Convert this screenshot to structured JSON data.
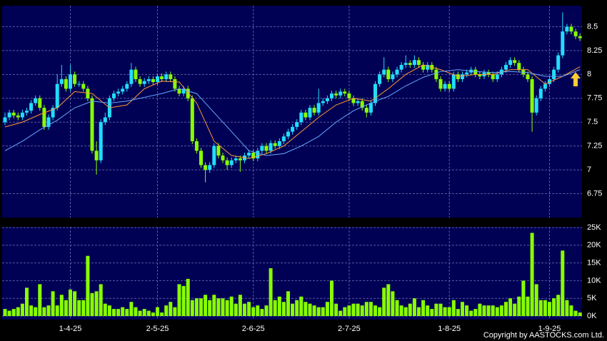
{
  "chart_data": [
    {
      "type": "candlestick",
      "categories": [
        null,
        null,
        null,
        null,
        null,
        null,
        null,
        null,
        null,
        null,
        null,
        null,
        null,
        null,
        null,
        "1-4-25",
        null,
        null,
        null,
        null,
        null,
        null,
        null,
        null,
        null,
        null,
        null,
        null,
        null,
        null,
        null,
        null,
        null,
        null,
        null,
        "2-5-25",
        null,
        null,
        null,
        null,
        null,
        null,
        null,
        null,
        null,
        null,
        null,
        null,
        null,
        null,
        null,
        null,
        null,
        null,
        null,
        null,
        null,
        "2-6-25",
        null,
        null,
        null,
        null,
        null,
        null,
        null,
        null,
        null,
        null,
        null,
        null,
        null,
        null,
        null,
        null,
        null,
        null,
        null,
        null,
        null,
        "2-7-25",
        null,
        null,
        null,
        null,
        null,
        null,
        null,
        null,
        null,
        null,
        null,
        null,
        null,
        null,
        null,
        null,
        null,
        null,
        null,
        null,
        null,
        null,
        "1-8-25",
        null,
        null,
        null,
        null,
        null,
        null,
        null,
        null,
        null,
        null,
        null,
        null,
        null,
        null,
        null,
        null,
        null,
        null,
        null,
        null,
        null,
        null,
        "1-9-25",
        null,
        null,
        null,
        null,
        null,
        null,
        null
      ],
      "open": [
        7.5,
        7.55,
        7.6,
        7.57,
        7.55,
        7.6,
        7.62,
        7.7,
        7.75,
        7.65,
        7.45,
        7.55,
        7.65,
        7.9,
        7.95,
        7.85,
        8.0,
        7.9,
        7.9,
        7.85,
        7.75,
        7.2,
        7.1,
        7.5,
        7.55,
        7.75,
        7.8,
        7.82,
        7.85,
        7.9,
        8.05,
        7.95,
        7.9,
        7.93,
        7.95,
        7.92,
        7.98,
        7.95,
        8.0,
        7.95,
        7.85,
        7.8,
        7.85,
        7.75,
        7.3,
        7.2,
        7.05,
        7.0,
        7.05,
        7.25,
        7.15,
        7.1,
        7.05,
        7.1,
        7.12,
        7.1,
        7.15,
        7.18,
        7.12,
        7.2,
        7.25,
        7.2,
        7.28,
        7.25,
        7.3,
        7.35,
        7.4,
        7.45,
        7.5,
        7.6,
        7.55,
        7.65,
        7.6,
        7.7,
        7.72,
        7.75,
        7.8,
        7.78,
        7.82,
        7.8,
        7.75,
        7.7,
        7.72,
        7.65,
        7.6,
        7.7,
        7.9,
        8.0,
        8.05,
        7.95,
        8.0,
        8.05,
        8.1,
        8.12,
        8.1,
        8.15,
        8.1,
        8.05,
        8.1,
        8.05,
        7.95,
        7.85,
        7.9,
        7.85,
        8.0,
        7.95,
        8.0,
        8.02,
        8.05,
        8.0,
        7.98,
        8.02,
        8.0,
        7.95,
        8.0,
        8.05,
        8.1,
        8.15,
        8.12,
        8.05,
        8.0,
        7.95,
        7.6,
        7.75,
        7.85,
        7.9,
        7.95,
        8.05,
        8.2,
        8.45,
        8.5,
        8.45,
        8.4
      ],
      "high": [
        7.6,
        7.63,
        7.63,
        7.6,
        7.63,
        7.65,
        7.73,
        7.78,
        7.78,
        7.68,
        7.58,
        7.68,
        8.0,
        8.1,
        7.98,
        8.1,
        8.03,
        7.93,
        7.93,
        7.88,
        7.78,
        7.3,
        7.53,
        7.6,
        7.78,
        7.83,
        7.85,
        7.88,
        7.93,
        8.12,
        8.08,
        7.98,
        7.96,
        7.98,
        7.98,
        8.01,
        8.01,
        8.03,
        8.03,
        7.98,
        7.88,
        7.88,
        7.88,
        7.78,
        7.33,
        7.23,
        7.08,
        7.08,
        7.28,
        7.28,
        7.18,
        7.13,
        7.13,
        7.15,
        7.15,
        7.18,
        7.21,
        7.21,
        7.23,
        7.28,
        7.28,
        7.31,
        7.31,
        7.33,
        7.38,
        7.43,
        7.48,
        7.53,
        7.63,
        7.63,
        7.68,
        7.68,
        7.85,
        7.75,
        7.78,
        7.83,
        7.83,
        7.85,
        7.85,
        7.83,
        7.78,
        7.75,
        7.75,
        7.68,
        7.73,
        7.93,
        8.03,
        8.18,
        8.08,
        8.03,
        8.08,
        8.13,
        8.2,
        8.15,
        8.2,
        8.18,
        8.13,
        8.13,
        8.13,
        8.08,
        7.98,
        7.93,
        7.93,
        8.03,
        8.03,
        8.03,
        8.05,
        8.08,
        8.08,
        8.03,
        8.05,
        8.05,
        8.03,
        8.03,
        8.08,
        8.13,
        8.18,
        8.18,
        8.15,
        8.08,
        8.03,
        7.98,
        7.78,
        7.88,
        7.93,
        7.98,
        8.08,
        8.23,
        8.65,
        8.53,
        8.53,
        8.48,
        8.43
      ],
      "low": [
        7.47,
        7.52,
        7.54,
        7.52,
        7.52,
        7.57,
        7.59,
        7.67,
        7.62,
        7.42,
        7.42,
        7.52,
        7.62,
        7.87,
        7.82,
        7.82,
        7.87,
        7.87,
        7.82,
        7.72,
        7.17,
        6.95,
        7.07,
        7.47,
        7.52,
        7.72,
        7.77,
        7.79,
        7.82,
        7.87,
        7.92,
        7.87,
        7.87,
        7.9,
        7.89,
        7.89,
        7.92,
        7.92,
        7.92,
        7.82,
        7.77,
        7.77,
        7.72,
        7.27,
        7.17,
        7.02,
        6.87,
        6.97,
        7.02,
        7.12,
        7.07,
        7.0,
        7.02,
        7.07,
        6.98,
        7.07,
        7.12,
        7.09,
        7.09,
        7.17,
        7.17,
        7.17,
        7.22,
        7.22,
        7.27,
        7.32,
        7.37,
        7.42,
        7.47,
        7.52,
        7.52,
        7.57,
        7.57,
        7.67,
        7.69,
        7.72,
        7.75,
        7.75,
        7.77,
        7.72,
        7.67,
        7.67,
        7.62,
        7.55,
        7.57,
        7.67,
        7.87,
        7.97,
        7.92,
        7.92,
        7.97,
        8.02,
        8.07,
        8.07,
        8.07,
        8.07,
        8.02,
        8.02,
        8.02,
        7.92,
        7.82,
        7.82,
        7.82,
        7.82,
        7.92,
        7.92,
        7.97,
        7.99,
        7.97,
        7.95,
        7.95,
        7.97,
        7.92,
        7.92,
        7.97,
        8.02,
        8.07,
        8.09,
        8.02,
        7.97,
        7.92,
        7.4,
        7.57,
        7.72,
        7.82,
        7.87,
        7.92,
        8.02,
        8.17,
        8.42,
        8.42,
        8.37,
        8.35
      ],
      "close": [
        7.55,
        7.6,
        7.57,
        7.55,
        7.6,
        7.62,
        7.7,
        7.75,
        7.65,
        7.45,
        7.55,
        7.65,
        7.9,
        7.95,
        7.85,
        8.0,
        7.9,
        7.9,
        7.85,
        7.75,
        7.2,
        7.1,
        7.5,
        7.55,
        7.75,
        7.8,
        7.82,
        7.85,
        7.9,
        8.05,
        7.95,
        7.9,
        7.93,
        7.95,
        7.92,
        7.98,
        7.95,
        8.0,
        7.95,
        7.85,
        7.8,
        7.85,
        7.75,
        7.3,
        7.2,
        7.05,
        7.0,
        7.05,
        7.25,
        7.15,
        7.1,
        7.05,
        7.1,
        7.12,
        7.1,
        7.15,
        7.18,
        7.12,
        7.2,
        7.25,
        7.2,
        7.28,
        7.25,
        7.3,
        7.35,
        7.4,
        7.45,
        7.5,
        7.6,
        7.55,
        7.65,
        7.6,
        7.7,
        7.72,
        7.75,
        7.8,
        7.78,
        7.82,
        7.8,
        7.75,
        7.7,
        7.72,
        7.65,
        7.6,
        7.7,
        7.9,
        8.0,
        8.05,
        7.95,
        8.0,
        8.05,
        8.1,
        8.12,
        8.1,
        8.15,
        8.1,
        8.05,
        8.1,
        8.05,
        7.95,
        7.85,
        7.9,
        7.85,
        8.0,
        7.95,
        8.0,
        8.02,
        8.05,
        8.0,
        7.98,
        8.02,
        8.0,
        7.95,
        8.0,
        8.05,
        8.1,
        8.15,
        8.12,
        8.05,
        8.0,
        7.95,
        7.6,
        7.75,
        7.85,
        7.9,
        7.95,
        8.05,
        8.2,
        8.45,
        8.5,
        8.45,
        8.4,
        8.38
      ],
      "up_color": "#22ddff",
      "down_color": "#88ff00",
      "series": [
        {
          "color": "#ff9933",
          "x": [
            0,
            4,
            8,
            12,
            16,
            20,
            24,
            28,
            32,
            36,
            40,
            44,
            48,
            52,
            56,
            60,
            64,
            68,
            72,
            76,
            80,
            84,
            88,
            92,
            96,
            100,
            104,
            108,
            112,
            116,
            120,
            124,
            128,
            132
          ],
          "values": [
            7.45,
            7.5,
            7.58,
            7.65,
            7.82,
            7.8,
            7.65,
            7.68,
            7.85,
            7.93,
            7.92,
            7.7,
            7.3,
            7.15,
            7.12,
            7.17,
            7.25,
            7.4,
            7.55,
            7.68,
            7.75,
            7.72,
            7.85,
            8.0,
            8.1,
            8.05,
            7.98,
            8.0,
            8.0,
            8.05,
            8.05,
            7.9,
            7.98,
            8.08
          ]
        },
        {
          "color": "#66aaff",
          "x": [
            0,
            4,
            8,
            12,
            16,
            20,
            24,
            28,
            32,
            36,
            40,
            44,
            48,
            52,
            56,
            60,
            64,
            68,
            72,
            76,
            80,
            84,
            88,
            92,
            96,
            100,
            104,
            108,
            112,
            116,
            120,
            124,
            128,
            132
          ],
          "values": [
            7.2,
            7.3,
            7.42,
            7.52,
            7.65,
            7.72,
            7.7,
            7.72,
            7.76,
            7.8,
            7.85,
            7.8,
            7.6,
            7.4,
            7.2,
            7.15,
            7.17,
            7.25,
            7.35,
            7.5,
            7.62,
            7.7,
            7.77,
            7.88,
            7.97,
            8.03,
            8.05,
            8.03,
            8.02,
            8.03,
            8.02,
            7.98,
            7.98,
            8.05
          ]
        }
      ],
      "ylim": [
        6.5,
        8.72
      ],
      "yticks": [
        6.75,
        7,
        7.25,
        7.5,
        7.75,
        8,
        8.25,
        8.5
      ],
      "grid": true
    },
    {
      "type": "bar",
      "values": [
        2000,
        1500,
        2000,
        2500,
        3500,
        8000,
        3000,
        2500,
        9000,
        2500,
        3000,
        7000,
        3000,
        6000,
        4500,
        7500,
        7000,
        4500,
        4500,
        17000,
        6500,
        7000,
        9000,
        3500,
        3000,
        2000,
        2000,
        2500,
        2000,
        4000,
        2500,
        1500,
        2000,
        1500,
        1000,
        2500,
        1000,
        3000,
        4000,
        2500,
        9000,
        8500,
        10500,
        4500,
        5000,
        5000,
        6000,
        4500,
        6000,
        5000,
        5000,
        4500,
        5500,
        3500,
        6000,
        3500,
        4000,
        2500,
        3000,
        2000,
        3000,
        13500,
        4500,
        5500,
        4000,
        7000,
        3500,
        4500,
        5500,
        4000,
        3500,
        3000,
        2500,
        2500,
        4000,
        10000,
        3500,
        1500,
        2500,
        3000,
        3500,
        3500,
        3000,
        4000,
        4000,
        3000,
        2500,
        8000,
        9000,
        7000,
        4500,
        3000,
        2500,
        3500,
        5000,
        2500,
        4500,
        3000,
        2000,
        3500,
        3500,
        2500,
        2500,
        4500,
        2000,
        4000,
        3000,
        1500,
        2000,
        3500,
        3000,
        3000,
        3000,
        2500,
        3000,
        4000,
        5000,
        3500,
        5500,
        10000,
        5500,
        23500,
        9000,
        4500,
        4500,
        4000,
        5000,
        6000,
        18500,
        4500,
        3000,
        1500,
        1000
      ],
      "color": "#88ff00",
      "ylim": [
        -1000,
        25200
      ],
      "yticks": [
        {
          "value": 0,
          "label": "0K"
        },
        {
          "value": 5000,
          "label": "5K"
        },
        {
          "value": 10000,
          "label": "10K"
        },
        {
          "value": 15000,
          "label": "15K"
        },
        {
          "value": 20000,
          "label": "20K"
        },
        {
          "value": 25000,
          "label": "25K"
        }
      ],
      "grid": true
    }
  ],
  "copyright": "Copyright by AASTOCKS.com Ltd."
}
